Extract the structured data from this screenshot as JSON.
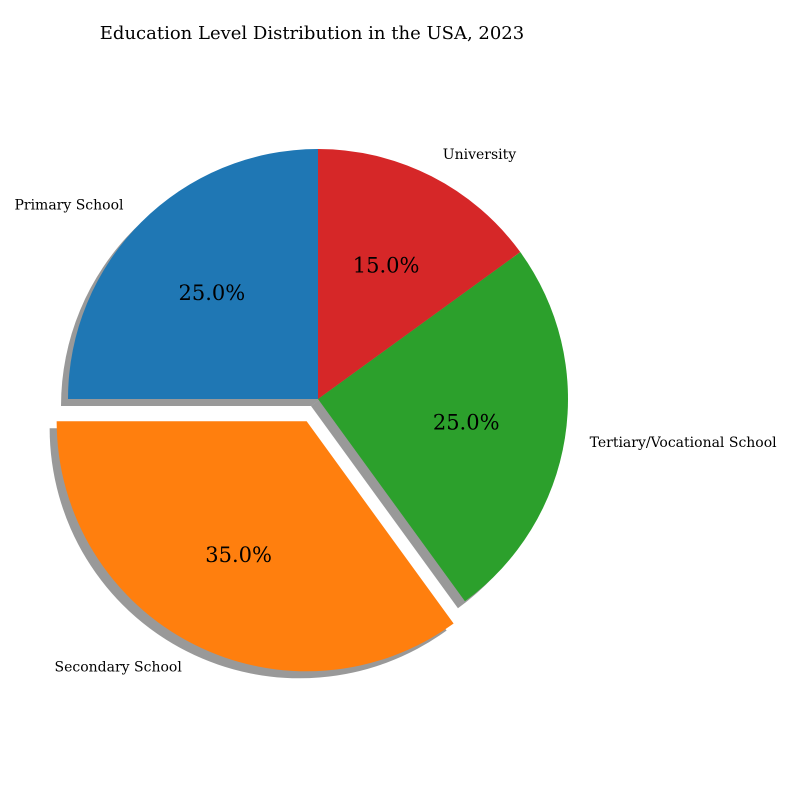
{
  "chart_data": {
    "type": "pie",
    "title": "Education Level Distribution in the USA, 2023",
    "categories": [
      "Primary School",
      "Secondary School",
      "Tertiary/Vocational School",
      "University"
    ],
    "values": [
      25.0,
      35.0,
      25.0,
      15.0
    ],
    "percent_labels": [
      "25.0%",
      "35.0%",
      "25.0%",
      "15.0%"
    ],
    "colors": [
      "#1f77b4",
      "#ff7f0e",
      "#2ca02c",
      "#d62728"
    ],
    "explode": [
      0,
      0.1,
      0,
      0
    ],
    "start_angle_deg": 90,
    "direction": "counterclockwise",
    "shadow": true
  }
}
